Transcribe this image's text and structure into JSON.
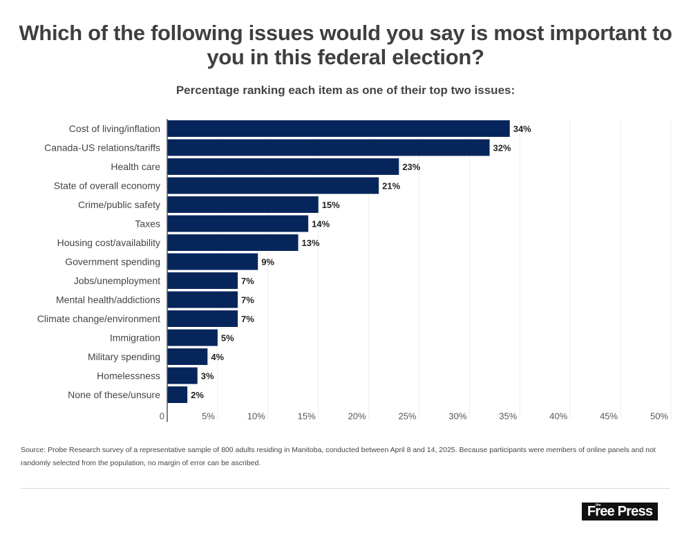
{
  "chart_data": {
    "type": "bar",
    "orientation": "horizontal",
    "title": "Which of the following issues would you say is most important to you in this federal election?",
    "subtitle": "Percentage ranking each item as one of their top two issues:",
    "xlabel": "",
    "ylabel": "",
    "xlim": [
      0,
      50
    ],
    "grid": true,
    "x_ticks": [
      "0",
      "5%",
      "10%",
      "15%",
      "20%",
      "25%",
      "30%",
      "35%",
      "40%",
      "45%",
      "50%"
    ],
    "x_tick_values": [
      0,
      5,
      10,
      15,
      20,
      25,
      30,
      35,
      40,
      45,
      50
    ],
    "categories": [
      "Cost of living/inflation",
      "Canada-US relations/tariffs",
      "Health care",
      "State of overall economy",
      "Crime/public safety",
      "Taxes",
      "Housing cost/availability",
      "Government spending",
      "Jobs/unemployment",
      "Mental health/addictions",
      "Climate change/environment",
      "Immigration",
      "Military spending",
      "Homelessness",
      "None of these/unsure"
    ],
    "values": [
      34,
      32,
      23,
      21,
      15,
      14,
      13,
      9,
      7,
      7,
      7,
      5,
      4,
      3,
      2
    ],
    "data_labels": [
      "34%",
      "32%",
      "23%",
      "21%",
      "15%",
      "14%",
      "13%",
      "9%",
      "7%",
      "7%",
      "7%",
      "5%",
      "4%",
      "3%",
      "2%"
    ],
    "bar_color": "#06265b"
  },
  "source": "Source: Probe Research survey of a representative sample of 800 adults residing in Manitoba, conducted between April 8 and 14, 2025. Because participants were members of online panels and not randomly selected from the population, no margin of error can be ascribed.",
  "logo": {
    "small": "the",
    "text": "Free Press"
  }
}
